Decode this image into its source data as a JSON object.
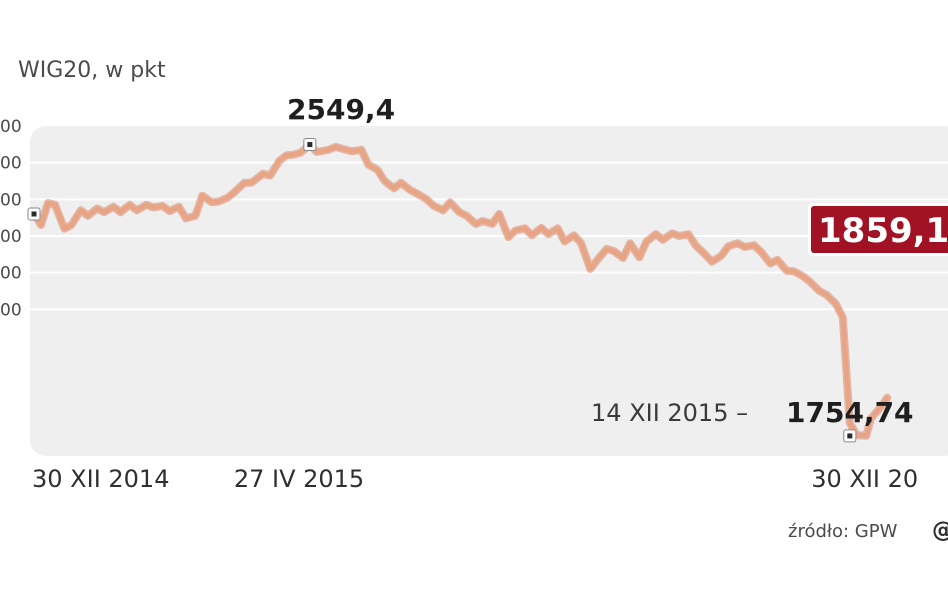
{
  "chart_data": {
    "type": "line",
    "title": "WIG20, w pkt",
    "source": "źródło: GPW",
    "logo": "@",
    "colors": {
      "line": "#e8a586",
      "line_edge": "#d7896b",
      "panel": "#efefef",
      "grid": "#ffffff",
      "last_badge": "#a11324"
    },
    "ylim": [
      1700,
      2600
    ],
    "yticks": [
      {
        "value": 2600,
        "label": "00"
      },
      {
        "value": 2500,
        "label": "00"
      },
      {
        "value": 2400,
        "label": "00"
      },
      {
        "value": 2300,
        "label": "00"
      },
      {
        "value": 2200,
        "label": "00"
      },
      {
        "value": 2100,
        "label": "00"
      }
    ],
    "xlim": [
      "2014-12-30",
      "2016-01-25"
    ],
    "xticks": [
      {
        "date": "2014-12-30",
        "label": "30 XII 2014"
      },
      {
        "date": "2015-04-27",
        "label": "27 IV 2015"
      },
      {
        "date": "2015-12-30",
        "label": "30 XII 20"
      }
    ],
    "annotations": {
      "max": {
        "date": "2015-04-27",
        "value": 2549.4,
        "label": "2549,4"
      },
      "min": {
        "date": "2015-12-14",
        "value": 1754.74,
        "date_label": "14 XII 2015 –",
        "value_label": "1754,74"
      },
      "last": {
        "label": "1859,1"
      }
    },
    "series": [
      {
        "x": [
          "2014-12-30",
          "2015-01-02",
          "2015-01-05",
          "2015-01-08",
          "2015-01-12",
          "2015-01-15",
          "2015-01-19",
          "2015-01-22",
          "2015-01-26",
          "2015-01-29",
          "2015-02-02",
          "2015-02-05",
          "2015-02-09",
          "2015-02-12",
          "2015-02-16",
          "2015-02-19",
          "2015-02-23",
          "2015-02-26",
          "2015-03-02",
          "2015-03-05",
          "2015-03-09",
          "2015-03-12",
          "2015-03-16",
          "2015-03-19",
          "2015-03-23",
          "2015-03-26",
          "2015-03-30",
          "2015-04-02",
          "2015-04-07",
          "2015-04-10",
          "2015-04-14",
          "2015-04-17",
          "2015-04-20",
          "2015-04-23",
          "2015-04-27",
          "2015-04-30",
          "2015-05-05",
          "2015-05-08",
          "2015-05-12",
          "2015-05-15",
          "2015-05-19",
          "2015-05-22",
          "2015-05-26",
          "2015-05-29",
          "2015-06-02",
          "2015-06-05",
          "2015-06-09",
          "2015-06-12",
          "2015-06-16",
          "2015-06-19",
          "2015-06-23",
          "2015-06-26",
          "2015-06-30",
          "2015-07-03",
          "2015-07-07",
          "2015-07-10",
          "2015-07-14",
          "2015-07-17",
          "2015-07-21",
          "2015-07-24",
          "2015-07-28",
          "2015-07-31",
          "2015-08-04",
          "2015-08-07",
          "2015-08-11",
          "2015-08-14",
          "2015-08-18",
          "2015-08-21",
          "2015-08-25",
          "2015-08-28",
          "2015-09-01",
          "2015-09-04",
          "2015-09-08",
          "2015-09-11",
          "2015-09-15",
          "2015-09-18",
          "2015-09-22",
          "2015-09-25",
          "2015-09-29",
          "2015-10-02",
          "2015-10-06",
          "2015-10-09",
          "2015-10-13",
          "2015-10-16",
          "2015-10-20",
          "2015-10-23",
          "2015-10-27",
          "2015-10-30",
          "2015-11-03",
          "2015-11-06",
          "2015-11-10",
          "2015-11-13",
          "2015-11-17",
          "2015-11-20",
          "2015-11-24",
          "2015-11-27",
          "2015-12-01",
          "2015-12-04",
          "2015-12-08",
          "2015-12-11",
          "2015-12-14",
          "2015-12-17",
          "2015-12-21",
          "2015-12-23",
          "2015-12-28",
          "2015-12-30"
        ],
        "values": [
          2360,
          2330,
          2390,
          2385,
          2320,
          2330,
          2370,
          2355,
          2375,
          2365,
          2380,
          2365,
          2385,
          2370,
          2385,
          2378,
          2382,
          2368,
          2380,
          2348,
          2355,
          2410,
          2392,
          2394,
          2405,
          2421,
          2445,
          2445,
          2470,
          2465,
          2505,
          2520,
          2522,
          2527,
          2549,
          2529,
          2535,
          2543,
          2536,
          2531,
          2535,
          2495,
          2480,
          2450,
          2430,
          2445,
          2425,
          2415,
          2400,
          2382,
          2370,
          2392,
          2365,
          2355,
          2333,
          2341,
          2333,
          2360,
          2297,
          2315,
          2321,
          2302,
          2322,
          2305,
          2321,
          2285,
          2302,
          2281,
          2210,
          2235,
          2265,
          2259,
          2240,
          2280,
          2242,
          2285,
          2305,
          2290,
          2307,
          2300,
          2305,
          2275,
          2250,
          2230,
          2246,
          2272,
          2280,
          2270,
          2275,
          2257,
          2225,
          2235,
          2205,
          2204,
          2190,
          2175,
          2150,
          2140,
          2115,
          2078,
          1790,
          1757,
          1755,
          1802,
          1839,
          1859
        ]
      }
    ]
  }
}
